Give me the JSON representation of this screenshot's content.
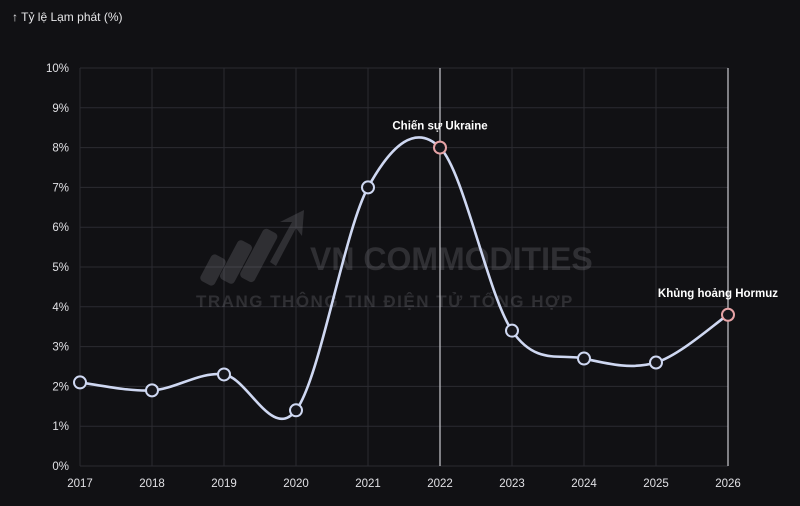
{
  "chart_data": {
    "type": "line",
    "ylabel": "Tỷ lệ Lạm phát (%)",
    "ylabel_arrow": "↑",
    "x": [
      "2017",
      "2018",
      "2019",
      "2020",
      "2021",
      "2022",
      "2023",
      "2024",
      "2025",
      "2026"
    ],
    "values": [
      2.1,
      1.9,
      2.3,
      1.4,
      7.0,
      8.0,
      3.4,
      2.7,
      2.6,
      3.8
    ],
    "ylim": [
      0,
      10
    ],
    "yticks": [
      "0%",
      "1%",
      "2%",
      "3%",
      "4%",
      "5%",
      "6%",
      "7%",
      "8%",
      "9%",
      "10%"
    ],
    "grid": true,
    "line_color": "#cfd8f2",
    "highlight_color": "#e7a3a6",
    "annotations": [
      {
        "year": "2022",
        "value": 8.0,
        "label": "Chiến sự Ukraine"
      },
      {
        "year": "2026",
        "value": 3.8,
        "label": "Khủng hoảng Hormuz"
      }
    ]
  },
  "watermark": {
    "brand": "VN COMMODITIES",
    "tagline": "TRANG THÔNG TIN ĐIỆN TỬ TỔNG HỢP",
    "logo_icon": "rising-bars-arrow-icon"
  }
}
